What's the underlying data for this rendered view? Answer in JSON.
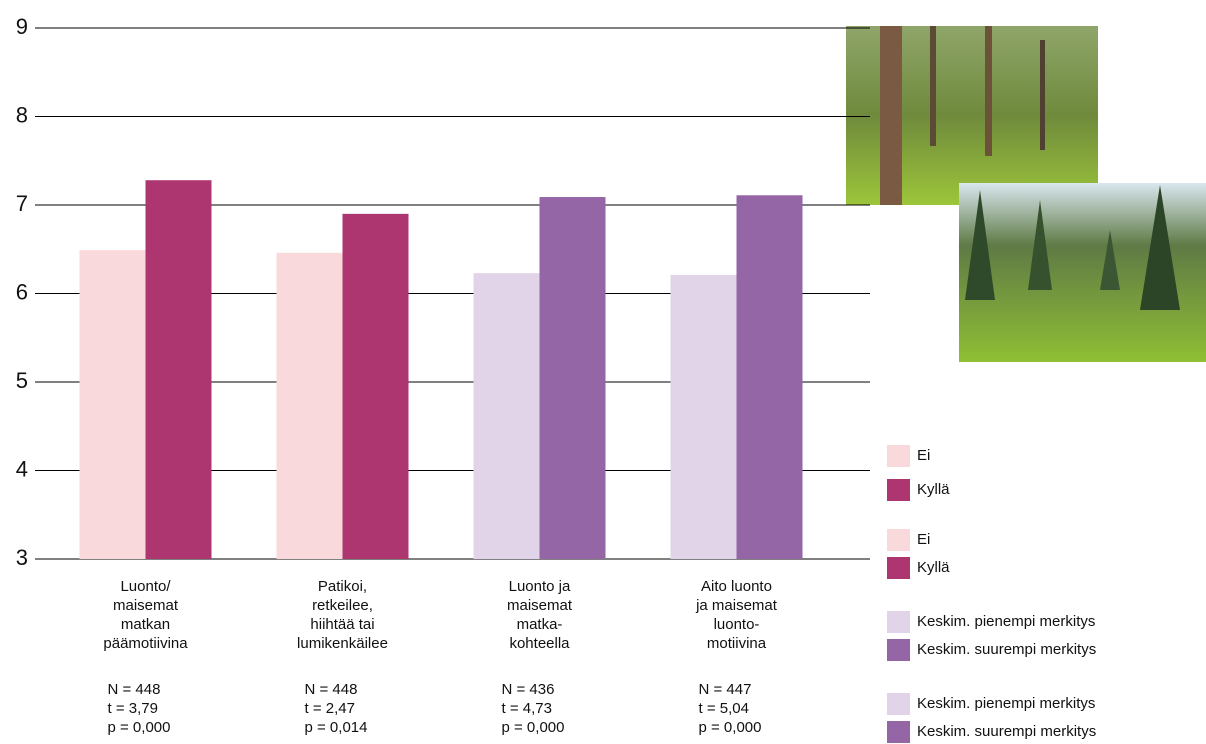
{
  "chart_data": {
    "type": "bar",
    "categories": [
      "Luonto/\nmaisemat\nmatkan\npäämotiivina",
      "Patikoi,\nretkeilee,\nhiihtää tai\nlumikenkäilee",
      "Luonto ja\nmaisemat\nmatka-\nkohteella",
      "Aito luonto\nja maisemat\nluonto-\nmotiivina"
    ],
    "series": [
      {
        "colors": [
          "#f9d9dc",
          "#f9d9dc",
          "#e2d4e8",
          "#e2d4e8"
        ],
        "values": [
          6.49,
          6.46,
          6.23,
          6.21
        ]
      },
      {
        "colors": [
          "#ad3670",
          "#ad3670",
          "#9566a6",
          "#9566a6"
        ],
        "values": [
          7.28,
          6.9,
          7.09,
          7.11
        ]
      }
    ],
    "stats": [
      [
        "N = 448",
        "t = 3,79",
        "p = 0,000"
      ],
      [
        "N = 448",
        "t = 2,47",
        "p = 0,014"
      ],
      [
        "N = 436",
        "t = 4,73",
        "p = 0,000"
      ],
      [
        "N = 447",
        "t = 5,04",
        "p = 0,000"
      ]
    ],
    "legend": [
      {
        "label": "Ei",
        "color": "#f9d9dc"
      },
      {
        "label": "Kyllä",
        "color": "#ad3670"
      },
      {
        "label": "Ei",
        "color": "#f9d9dc"
      },
      {
        "label": "Kyllä",
        "color": "#ad3670"
      },
      {
        "label": "Keskim. pienempi merkitys",
        "color": "#e2d4e8"
      },
      {
        "label": "Keskim. suurempi merkitys",
        "color": "#9566a6"
      },
      {
        "label": "Keskim. pienempi merkitys",
        "color": "#e2d4e8"
      },
      {
        "label": "Keskim. suurempi merkitys",
        "color": "#9566a6"
      }
    ],
    "ylim": [
      3,
      9
    ],
    "yticks": [
      3,
      4,
      5,
      6,
      7,
      8,
      9
    ],
    "grid": true
  }
}
